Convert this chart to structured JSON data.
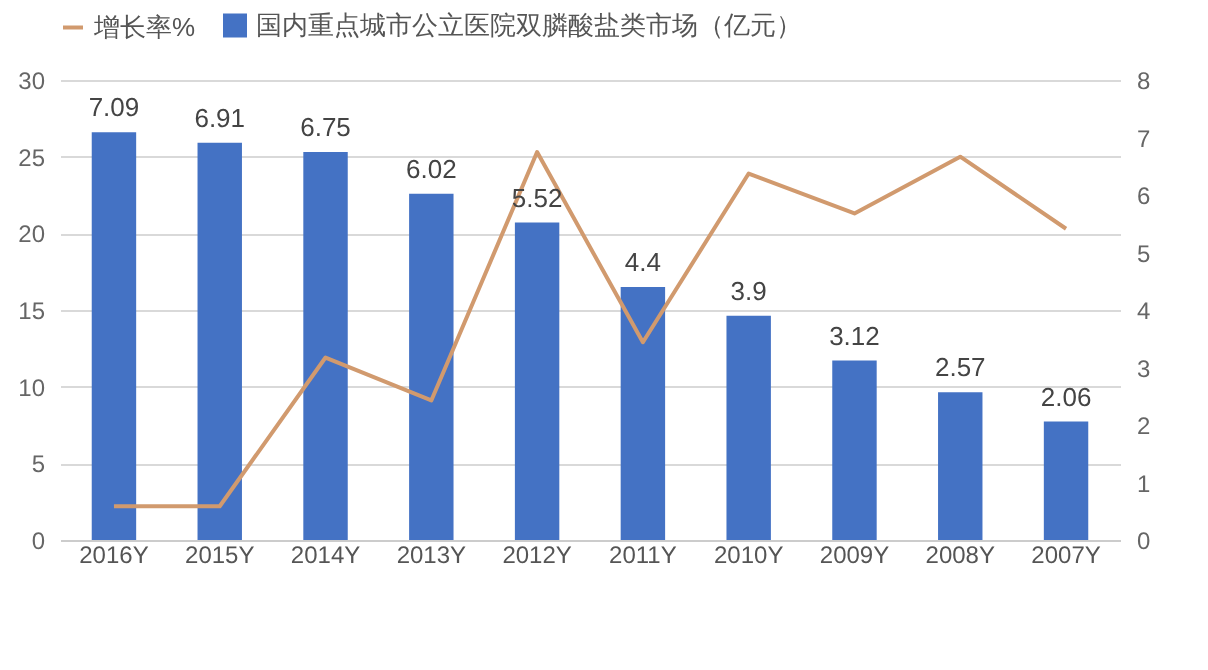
{
  "chart_data": {
    "type": "bar",
    "categories": [
      "2016Y",
      "2015Y",
      "2014Y",
      "2013Y",
      "2012Y",
      "2011Y",
      "2010Y",
      "2009Y",
      "2008Y",
      "2007Y"
    ],
    "series": [
      {
        "name": "增长率%",
        "type": "line",
        "color": "#d19a6e",
        "values": [
          2.2,
          2.2,
          11.9,
          9.1,
          25.3,
          12.9,
          23.9,
          21.3,
          25.0,
          20.3
        ]
      },
      {
        "name": "国内重点城市公立医院双膦酸盐类市场（亿元）",
        "axis": "y2",
        "color": "#4472c4",
        "values": [
          7.09,
          6.91,
          6.75,
          6.02,
          5.52,
          4.4,
          3.9,
          3.12,
          2.57,
          2.06
        ],
        "value_labels": [
          "7.09",
          "6.91",
          "6.75",
          "6.02",
          "5.52",
          "4.4",
          "3.9",
          "3.12",
          "2.57",
          "2.06"
        ]
      }
    ],
    "ylim": [
      0,
      30
    ],
    "yticks": [
      0,
      5,
      10,
      15,
      20,
      25,
      30
    ],
    "y2lim": [
      0,
      8
    ],
    "y2ticks": [
      0,
      1,
      2,
      3,
      4,
      5,
      6,
      7,
      8
    ],
    "grid": "y",
    "legend": "top"
  }
}
